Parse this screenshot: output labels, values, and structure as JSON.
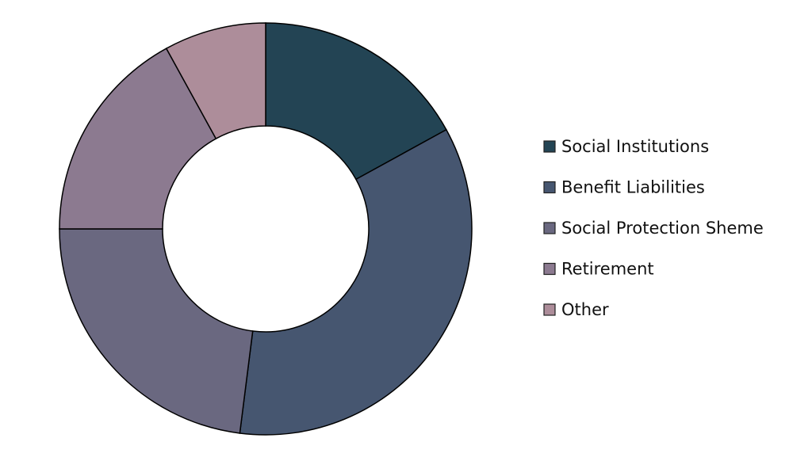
{
  "chart_data": {
    "type": "donut",
    "categories": [
      "Social Institutions",
      "Benefit Liabilities",
      "Social Protection Sheme",
      "Retirement",
      "Other"
    ],
    "values": [
      17,
      35,
      23,
      17,
      8
    ],
    "colors": [
      "#234454",
      "#465670",
      "#6a6880",
      "#8c7a90",
      "#ad8d9a"
    ],
    "legend": "right"
  }
}
